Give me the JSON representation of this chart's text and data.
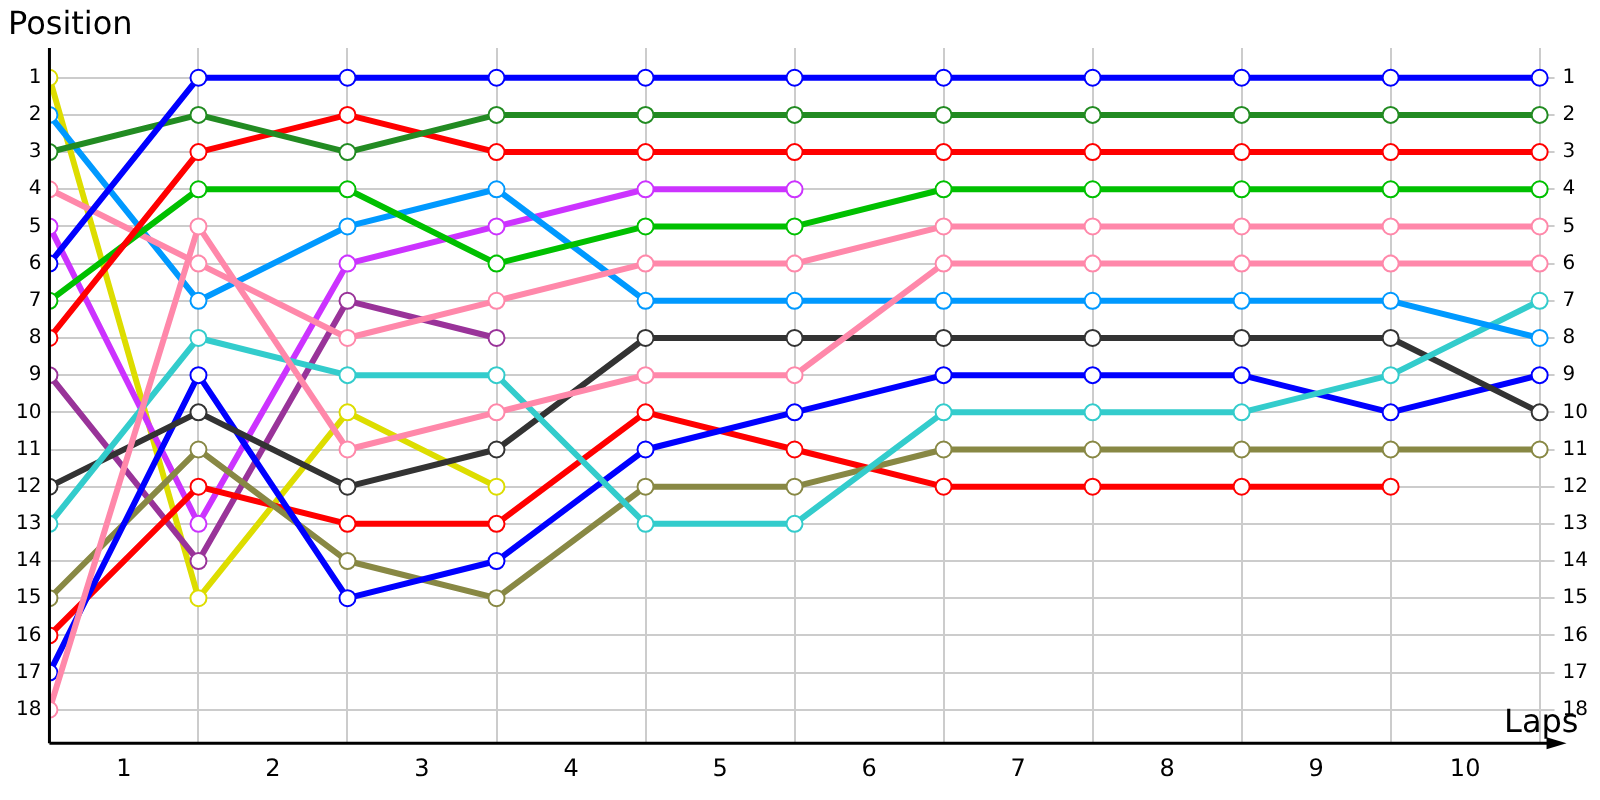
{
  "chart_data": {
    "type": "line",
    "ylabel": "Position",
    "xlabel": "Laps",
    "x": [
      0,
      1,
      2,
      3,
      4,
      5,
      6,
      7,
      8,
      9,
      10
    ],
    "xlim": [
      0,
      10.1
    ],
    "xticks": [
      {
        "value": 0,
        "label": null
      },
      {
        "value": 0.5,
        "label": "1"
      },
      {
        "value": 1,
        "label": null
      },
      {
        "value": 1.5,
        "label": "2"
      },
      {
        "value": 2,
        "label": null
      },
      {
        "value": 2.5,
        "label": "3"
      },
      {
        "value": 3,
        "label": null
      },
      {
        "value": 3.5,
        "label": "4"
      },
      {
        "value": 4,
        "label": null
      },
      {
        "value": 4.5,
        "label": "5"
      },
      {
        "value": 5,
        "label": null
      },
      {
        "value": 5.5,
        "label": "6"
      },
      {
        "value": 6,
        "label": null
      },
      {
        "value": 6.5,
        "label": "7"
      },
      {
        "value": 7,
        "label": null
      },
      {
        "value": 7.5,
        "label": "8"
      },
      {
        "value": 8,
        "label": null
      },
      {
        "value": 8.5,
        "label": "9"
      },
      {
        "value": 9,
        "label": null
      },
      {
        "value": 9.5,
        "label": "10"
      },
      {
        "value": 10,
        "label": null
      }
    ],
    "ylim": [
      18.9,
      0.2
    ],
    "yticks": [
      1,
      2,
      3,
      4,
      5,
      6,
      7,
      8,
      9,
      10,
      11,
      12,
      13,
      14,
      15,
      16,
      17,
      18
    ],
    "y2lim": [
      18.9,
      0.2
    ],
    "y2ticks": [
      1,
      2,
      3,
      4,
      5,
      6,
      7,
      8,
      9,
      10,
      11,
      12,
      13,
      14,
      15,
      16,
      17,
      18
    ],
    "grid": true,
    "legend": false,
    "marker": "circle",
    "line_style": "solid",
    "series": [
      {
        "color": "#0000ff",
        "values": [
          6,
          1,
          1,
          1,
          1,
          1,
          1,
          1,
          1,
          1,
          1
        ]
      },
      {
        "color": "#228b22",
        "values": [
          3,
          2,
          3,
          2,
          2,
          2,
          2,
          2,
          2,
          2,
          2
        ]
      },
      {
        "color": "#ff0000",
        "values": [
          8,
          3,
          2,
          3,
          3,
          3,
          3,
          3,
          3,
          3,
          3
        ]
      },
      {
        "color": "#00c000",
        "values": [
          7,
          4,
          4,
          6,
          5,
          5,
          4,
          4,
          4,
          4,
          4
        ]
      },
      {
        "color": "#ff88aa",
        "values": [
          4,
          6,
          8,
          7,
          6,
          6,
          5,
          5,
          5,
          5,
          5
        ]
      },
      {
        "color": "#ff88aa",
        "values": [
          18,
          5,
          11,
          10,
          9,
          9,
          6,
          6,
          6,
          6,
          6
        ]
      },
      {
        "color": "#0099ff",
        "values": [
          2,
          7,
          5,
          4,
          7,
          7,
          7,
          7,
          7,
          7,
          8
        ]
      },
      {
        "color": "#33cccc",
        "values": [
          13,
          8,
          9,
          9,
          13,
          13,
          10,
          10,
          10,
          9,
          7
        ]
      },
      {
        "color": "#333333",
        "values": [
          12,
          10,
          12,
          11,
          8,
          8,
          8,
          8,
          8,
          8,
          10
        ]
      },
      {
        "color": "#0000ff",
        "values": [
          17,
          9,
          15,
          14,
          11,
          10,
          9,
          9,
          9,
          10,
          9
        ]
      },
      {
        "color": "#888844",
        "values": [
          15,
          11,
          14,
          15,
          12,
          12,
          11,
          11,
          11,
          11,
          11
        ]
      },
      {
        "color": "#ff0000",
        "values": [
          16,
          12,
          13,
          13,
          10,
          11,
          12,
          12,
          12,
          12,
          null
        ]
      },
      {
        "color": "#cc33ff",
        "values": [
          5,
          13,
          6,
          5,
          4,
          4,
          null,
          null,
          null,
          null,
          null
        ]
      },
      {
        "color": "#993399",
        "values": [
          9,
          14,
          7,
          8,
          null,
          null,
          null,
          null,
          null,
          null,
          null
        ]
      },
      {
        "color": "#dddd00",
        "values": [
          1,
          15,
          10,
          12,
          null,
          null,
          null,
          null,
          null,
          null,
          null
        ]
      }
    ]
  }
}
